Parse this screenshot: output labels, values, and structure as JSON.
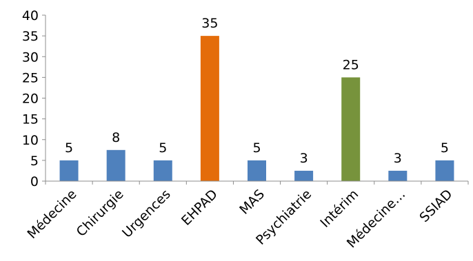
{
  "chart_data": {
    "type": "bar",
    "title": "",
    "xlabel": "",
    "ylabel": "",
    "ylim": [
      0,
      40
    ],
    "yticks": [
      0,
      5,
      10,
      15,
      20,
      25,
      30,
      35,
      40
    ],
    "grid": false,
    "legend": "none",
    "categories": [
      "Médecine",
      "Chirurgie",
      "Urgences",
      "EHPAD",
      "MAS",
      "Psychiatrie",
      "Intérim",
      "Médecine…",
      "SSIAD"
    ],
    "values": [
      5,
      7.5,
      5,
      35,
      5,
      2.5,
      25,
      2.5,
      5
    ],
    "data_labels": [
      "5",
      "8",
      "5",
      "35",
      "5",
      "3",
      "25",
      "3",
      "5"
    ],
    "colors": [
      "#4f81bd",
      "#4f81bd",
      "#4f81bd",
      "#e46c0a",
      "#4f81bd",
      "#4f81bd",
      "#77933c",
      "#4f81bd",
      "#4f81bd"
    ]
  }
}
